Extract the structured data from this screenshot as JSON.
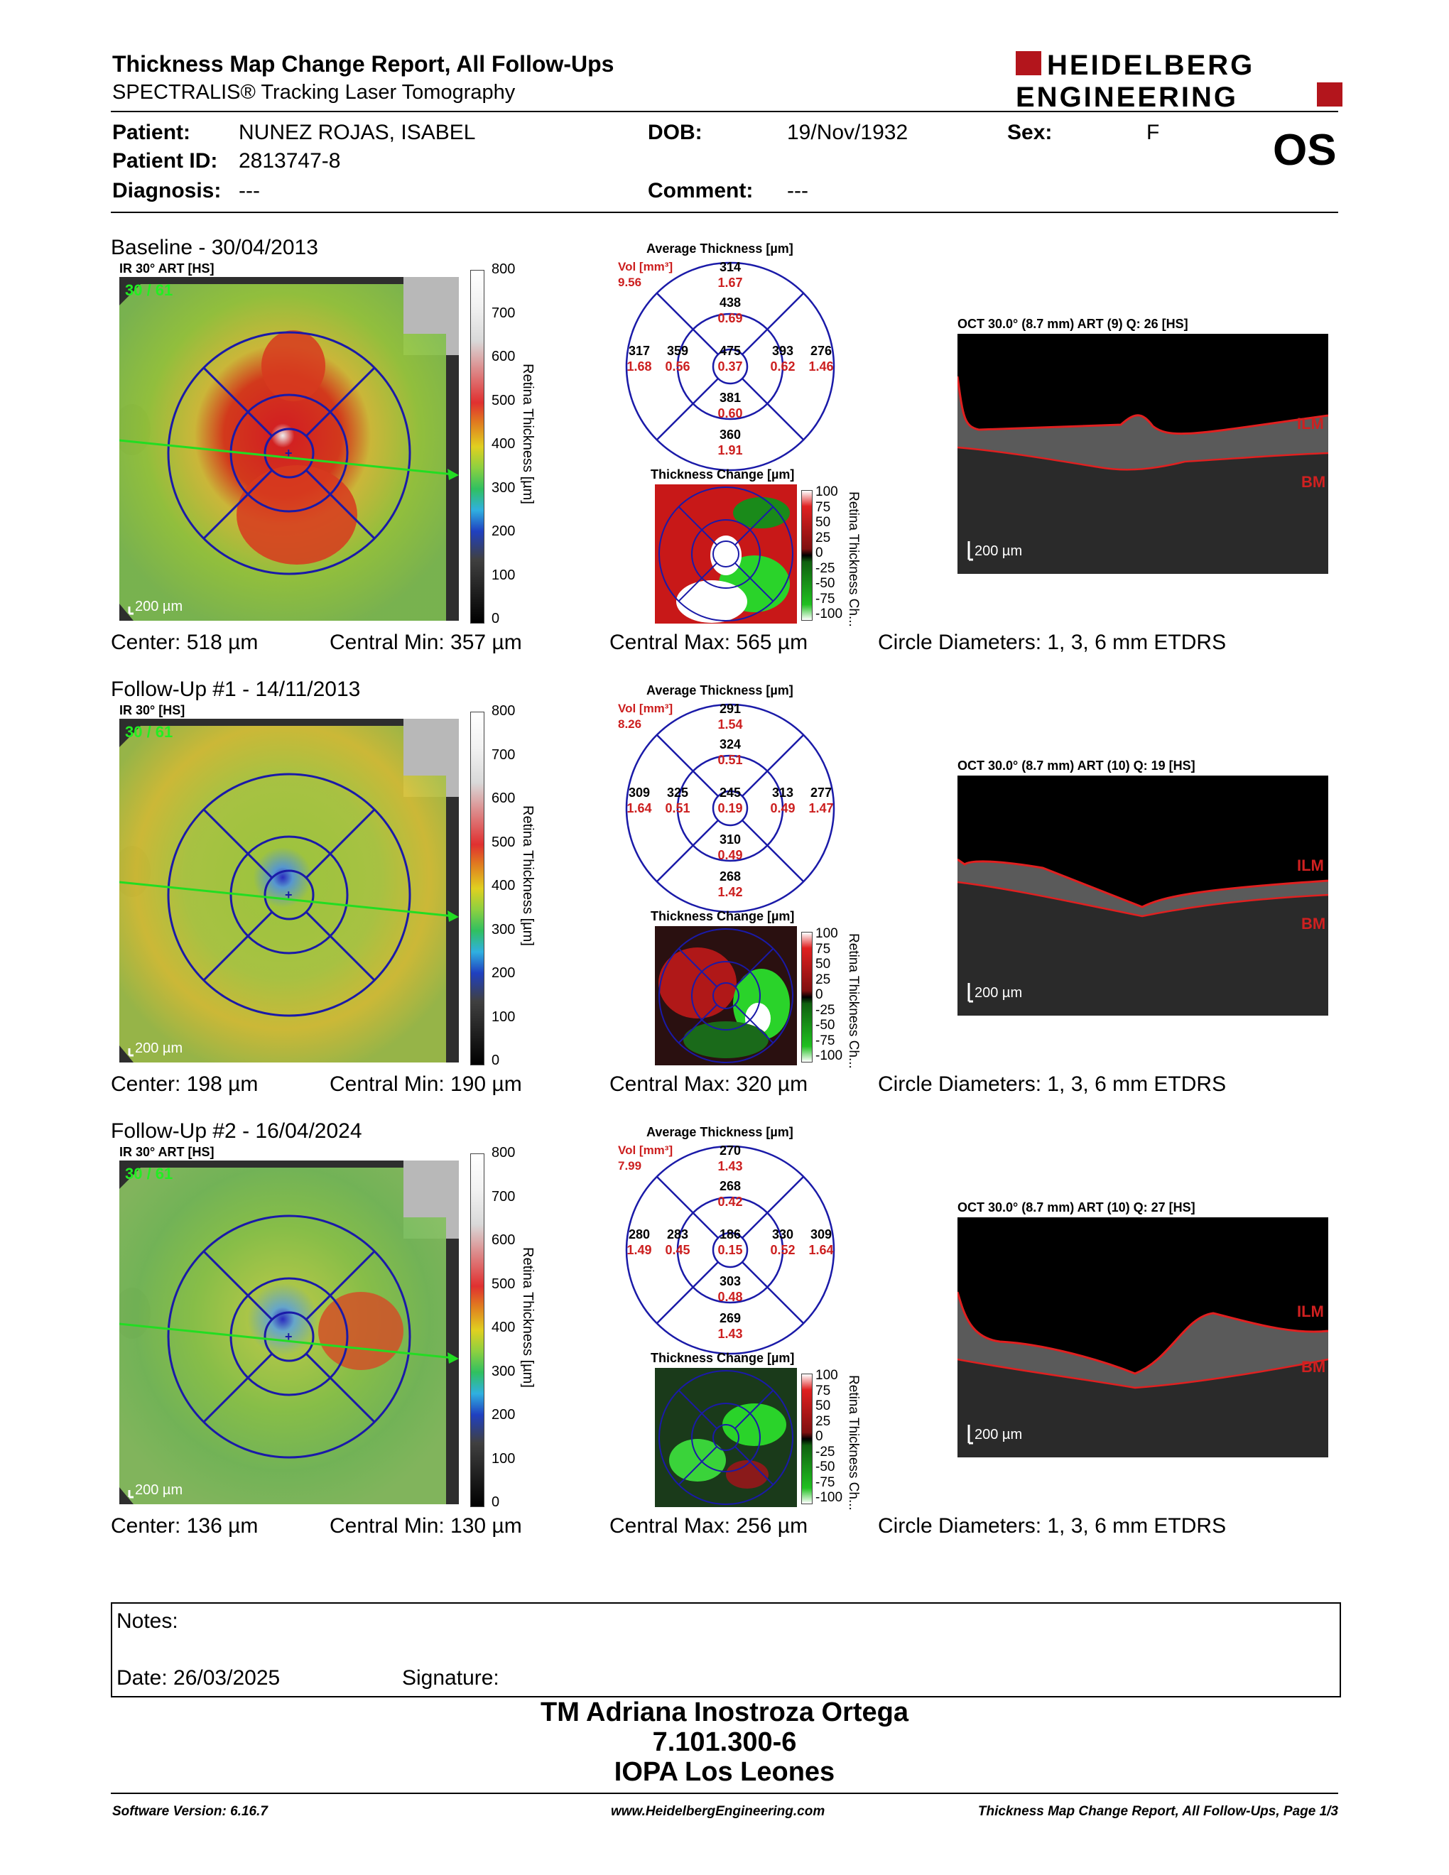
{
  "header": {
    "title": "Thickness Map Change Report, All Follow-Ups",
    "subtitle": "SPECTRALIS® Tracking Laser Tomography",
    "logo_line1": "HEIDELBERG",
    "logo_line2": "ENGINEERING"
  },
  "patient": {
    "patient_label": "Patient:",
    "patient_value": "NUNEZ ROJAS, ISABEL",
    "dob_label": "DOB:",
    "dob_value": "19/Nov/1932",
    "sex_label": "Sex:",
    "sex_value": "F",
    "id_label": "Patient ID:",
    "id_value": "2813747-8",
    "diagnosis_label": "Diagnosis:",
    "diagnosis_value": "---",
    "comment_label": "Comment:",
    "comment_value": "---",
    "eye": "OS"
  },
  "common": {
    "scale_bar": "200 µm",
    "avg_title": "Average Thickness [µm]",
    "vol_label": "Vol [mm³]",
    "change_title": "Thickness Change [µm]",
    "colorbar_title": "Retina Thickness [µm]",
    "change_bar_title": "Retina Thickness Ch...",
    "colorbar_ticks": [
      "800",
      "700",
      "600",
      "500",
      "400",
      "300",
      "200",
      "100",
      "0"
    ],
    "change_ticks": [
      "100",
      "75",
      "50",
      "25",
      "0",
      "-25",
      "-50",
      "-75",
      "-100"
    ],
    "ilm": "ILM",
    "bm": "BM",
    "circle_diameters": "Circle Diameters:  1, 3, 6 mm ETDRS"
  },
  "sections": [
    {
      "title": "Baseline - 30/04/2013",
      "ir_label": "IR 30° ART [HS]",
      "frames": "30 / 61",
      "vol": "9.56",
      "etdrs": {
        "sup_outer": [
          "314",
          "1.67"
        ],
        "sup_inner": [
          "438",
          "0.69"
        ],
        "temp_outer": [
          "317",
          "1.68"
        ],
        "temp_inner": [
          "359",
          "0.56"
        ],
        "center": [
          "475",
          "0.37"
        ],
        "nasal_inner": [
          "393",
          "0.62"
        ],
        "nasal_outer": [
          "276",
          "1.46"
        ],
        "inf_inner": [
          "381",
          "0.60"
        ],
        "inf_outer": [
          "360",
          "1.91"
        ]
      },
      "oct_label": "OCT 30.0° (8.7 mm) ART (9) Q: 26 [HS]",
      "center": "Center: 518 µm",
      "central_min": "Central Min: 357 µm",
      "central_max": "Central Max: 565 µm"
    },
    {
      "title": "Follow-Up #1 - 14/11/2013",
      "ir_label": "IR 30° [HS]",
      "frames": "30 / 61",
      "vol": "8.26",
      "etdrs": {
        "sup_outer": [
          "291",
          "1.54"
        ],
        "sup_inner": [
          "324",
          "0.51"
        ],
        "temp_outer": [
          "309",
          "1.64"
        ],
        "temp_inner": [
          "325",
          "0.51"
        ],
        "center": [
          "245",
          "0.19"
        ],
        "nasal_inner": [
          "313",
          "0.49"
        ],
        "nasal_outer": [
          "277",
          "1.47"
        ],
        "inf_inner": [
          "310",
          "0.49"
        ],
        "inf_outer": [
          "268",
          "1.42"
        ]
      },
      "oct_label": "OCT 30.0° (8.7 mm) ART (10) Q: 19 [HS]",
      "center": "Center: 198 µm",
      "central_min": "Central Min: 190 µm",
      "central_max": "Central Max: 320 µm"
    },
    {
      "title": "Follow-Up #2 - 16/04/2024",
      "ir_label": "IR 30° ART [HS]",
      "frames": "30 / 61",
      "vol": "7.99",
      "etdrs": {
        "sup_outer": [
          "270",
          "1.43"
        ],
        "sup_inner": [
          "268",
          "0.42"
        ],
        "temp_outer": [
          "280",
          "1.49"
        ],
        "temp_inner": [
          "283",
          "0.45"
        ],
        "center": [
          "186",
          "0.15"
        ],
        "nasal_inner": [
          "330",
          "0.52"
        ],
        "nasal_outer": [
          "309",
          "1.64"
        ],
        "inf_inner": [
          "303",
          "0.48"
        ],
        "inf_outer": [
          "269",
          "1.43"
        ]
      },
      "oct_label": "OCT 30.0° (8.7 mm) ART (10) Q: 27 [HS]",
      "center": "Center: 136 µm",
      "central_min": "Central Min: 130 µm",
      "central_max": "Central Max: 256 µm"
    }
  ],
  "notes": {
    "notes_label": "Notes:",
    "date": "Date: 26/03/2025",
    "signature_label": "Signature:"
  },
  "signature": {
    "line1": "TM Adriana Inostroza Ortega",
    "line2": "7.101.300-6",
    "line3": "IOPA Los Leones"
  },
  "footer": {
    "software": "Software Version: 6.16.7",
    "website": "www.HeidelbergEngineering.com",
    "page": "Thickness Map Change Report, All Follow-Ups, Page 1/3"
  },
  "colors": {
    "logo_red": "#b3151c",
    "vol_red": "#cc1f1f",
    "ring_blue": "#1a1aa8",
    "green_line": "#22dd22"
  }
}
